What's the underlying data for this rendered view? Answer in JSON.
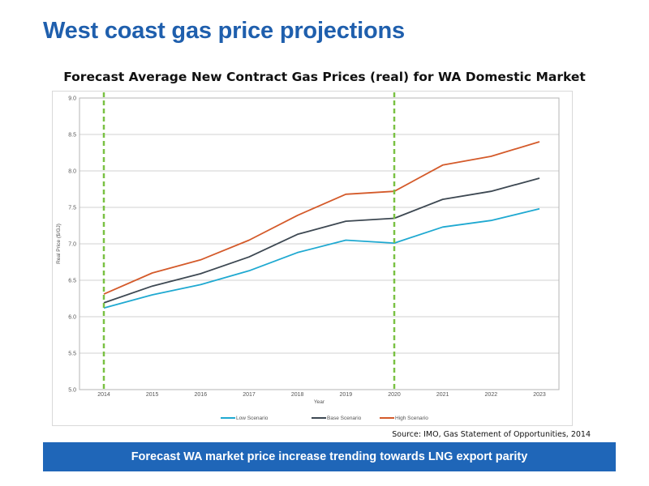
{
  "slide": {
    "title": "West coast gas price projections",
    "source": "Source: IMO, Gas Statement of Opportunities, 2014",
    "banner": "Forecast WA market price increase trending towards LNG export parity"
  },
  "colors": {
    "title": "#1f5fad",
    "banner": "#1f66b8",
    "low": "#1fa9d1",
    "base": "#3d4852",
    "high": "#d45a2a",
    "marker": "#7ac143"
  },
  "chart_data": {
    "type": "line",
    "title": "Forecast Average New Contract Gas Prices (real) for WA Domestic Market",
    "xlabel": "Year",
    "ylabel": "Real Price ($/GJ)",
    "x": [
      "2014",
      "2015",
      "2016",
      "2017",
      "2018",
      "2019",
      "2020",
      "2021",
      "2022",
      "2023"
    ],
    "ylim": [
      5.0,
      9.0
    ],
    "yticks": [
      "5.0",
      "5.5",
      "6.0",
      "6.5",
      "7.0",
      "7.5",
      "8.0",
      "8.5",
      "9.0"
    ],
    "grid": true,
    "legend_position": "bottom",
    "series": [
      {
        "name": "Low Scenario",
        "color": "#1fa9d1",
        "values": [
          6.12,
          6.3,
          6.44,
          6.63,
          6.88,
          7.05,
          7.01,
          7.23,
          7.32,
          7.48
        ]
      },
      {
        "name": "Base Scenario",
        "color": "#3d4852",
        "values": [
          6.19,
          6.42,
          6.59,
          6.82,
          7.13,
          7.31,
          7.35,
          7.61,
          7.72,
          7.9
        ]
      },
      {
        "name": "High Scenario",
        "color": "#d45a2a",
        "values": [
          6.31,
          6.6,
          6.78,
          7.05,
          7.39,
          7.68,
          7.72,
          8.08,
          8.2,
          8.4
        ]
      }
    ],
    "markers": [
      {
        "x": "2014",
        "color": "#7ac143"
      },
      {
        "x": "2020",
        "color": "#7ac143"
      }
    ]
  }
}
